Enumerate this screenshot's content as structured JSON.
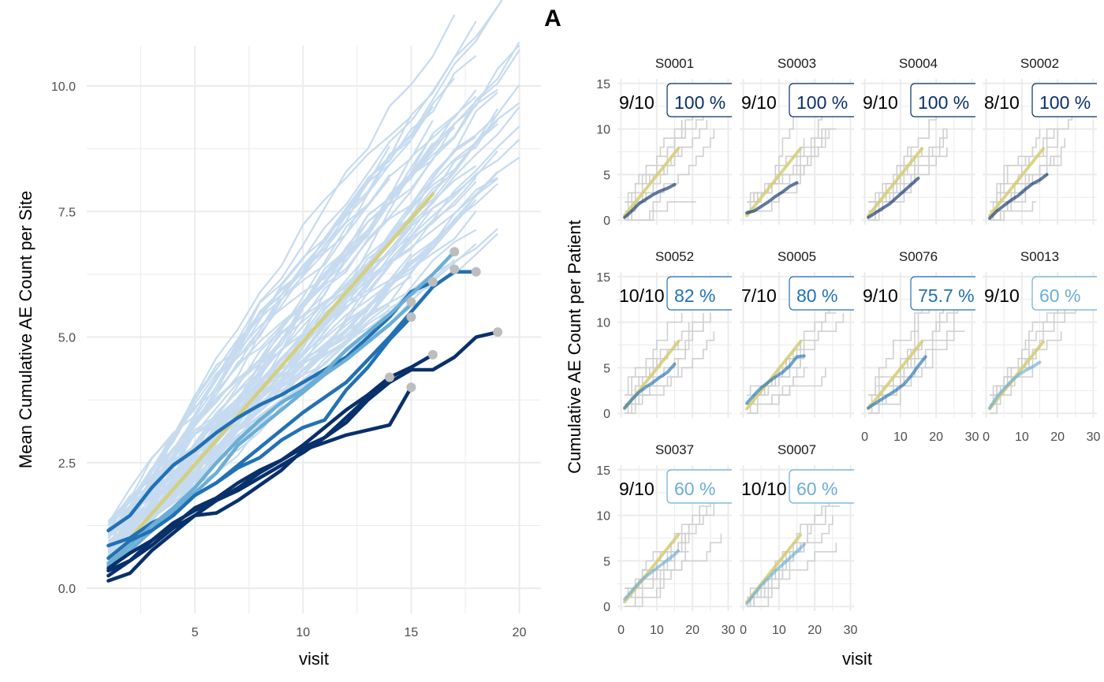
{
  "figure_title": "A",
  "colors": {
    "grid": "#ebebeb",
    "site_background_line": "#c6dbef",
    "expected_line": "#d5cd72",
    "dot": "#bdbdbd",
    "patient_line": "#d0d0d0",
    "flag_dark": "#08306b",
    "flag_mid": "#2171b5",
    "flag_light": "#6baed6"
  },
  "chart_data": [
    {
      "type": "line",
      "title": "",
      "xlabel": "visit",
      "ylabel": "Mean Cumulative AE Count per Site",
      "xlim": [
        0,
        21
      ],
      "ylim": [
        -0.5,
        10.8
      ],
      "x_ticks": [
        5,
        10,
        15,
        20
      ],
      "x_tick_labels": [
        "5",
        "10",
        "15",
        "20"
      ],
      "y_ticks": [
        0,
        2.5,
        5,
        7.5,
        10
      ],
      "y_tick_labels": [
        "0.0",
        "2.5",
        "5.0",
        "7.5",
        "10.0"
      ],
      "grid": true,
      "legend": "none",
      "background_sites": {
        "count": 70,
        "color": "#c6dbef",
        "visit_range": [
          1,
          20
        ],
        "y_at_visit1_range": [
          0.4,
          1.35
        ],
        "y_at_visit17_range": [
          6.6,
          10.5
        ]
      },
      "expected": {
        "color": "#d5cd72",
        "x": [
          1,
          16
        ],
        "y": [
          0.5,
          7.85
        ]
      },
      "series": [
        {
          "color": "#2171b5",
          "x": [
            1,
            2,
            3,
            4,
            5,
            6,
            7,
            8,
            9,
            10,
            11,
            12,
            13,
            14,
            15,
            16
          ],
          "y": [
            1.15,
            1.45,
            2.0,
            2.45,
            2.75,
            3.1,
            3.4,
            3.65,
            3.85,
            4.1,
            4.35,
            4.6,
            5.0,
            5.4,
            5.9,
            6.1
          ]
        },
        {
          "color": "#2171b5",
          "x": [
            1,
            2,
            3,
            4,
            5,
            6,
            7,
            8,
            9,
            10,
            11,
            12,
            13,
            14,
            15,
            16,
            17,
            18
          ],
          "y": [
            0.85,
            1.0,
            1.3,
            1.5,
            1.85,
            2.1,
            2.45,
            2.8,
            3.15,
            3.5,
            3.8,
            4.1,
            4.55,
            5.0,
            5.5,
            6.0,
            6.3,
            6.3
          ]
        },
        {
          "color": "#6baed6",
          "x": [
            1,
            2,
            3,
            4,
            5,
            6,
            7,
            8,
            9,
            10,
            11,
            12,
            13,
            14,
            15,
            16,
            17
          ],
          "y": [
            0.5,
            0.85,
            1.25,
            1.6,
            2.0,
            2.5,
            2.95,
            3.35,
            3.7,
            3.95,
            4.3,
            4.75,
            5.1,
            5.45,
            5.85,
            6.25,
            6.7
          ]
        },
        {
          "color": "#6baed6",
          "x": [
            1,
            2,
            3,
            4,
            5,
            6,
            7,
            8,
            9,
            10,
            11,
            12,
            13,
            14,
            15
          ],
          "y": [
            0.45,
            0.75,
            1.15,
            1.55,
            1.9,
            2.3,
            2.85,
            3.2,
            3.55,
            3.9,
            4.25,
            4.55,
            4.9,
            5.25,
            5.65
          ]
        },
        {
          "color": "#2171b5",
          "x": [
            1,
            2,
            3,
            4,
            5,
            6,
            7,
            8,
            9,
            10,
            11,
            12,
            13,
            14,
            15
          ],
          "y": [
            0.6,
            0.95,
            1.15,
            1.45,
            1.85,
            2.1,
            2.4,
            2.6,
            2.95,
            3.2,
            3.35,
            3.95,
            4.4,
            4.95,
            5.4
          ]
        },
        {
          "color": "#08306b",
          "x": [
            1,
            2,
            3,
            4,
            5,
            6,
            7,
            8,
            9,
            10,
            11,
            12,
            13,
            14,
            15,
            16,
            17,
            18,
            19
          ],
          "y": [
            0.35,
            0.55,
            0.85,
            1.2,
            1.45,
            1.75,
            2.0,
            2.3,
            2.55,
            2.8,
            3.0,
            3.3,
            3.75,
            4.1,
            4.35,
            4.35,
            4.6,
            5.0,
            5.1
          ]
        },
        {
          "color": "#08306b",
          "x": [
            1,
            2,
            3,
            4,
            5,
            6,
            7,
            8,
            9,
            10,
            11,
            12,
            13,
            14,
            15,
            16
          ],
          "y": [
            0.4,
            0.7,
            0.95,
            1.3,
            1.55,
            1.75,
            1.95,
            2.2,
            2.45,
            2.7,
            3.0,
            3.4,
            3.8,
            4.2,
            4.4,
            4.65
          ]
        },
        {
          "color": "#08306b",
          "x": [
            1,
            2,
            3,
            4,
            5,
            6,
            7,
            8,
            9,
            10,
            11,
            12,
            13,
            14
          ],
          "y": [
            0.25,
            0.55,
            0.95,
            1.25,
            1.6,
            1.8,
            2.1,
            2.35,
            2.55,
            2.85,
            3.2,
            3.55,
            3.85,
            4.2
          ]
        },
        {
          "color": "#08306b",
          "x": [
            1,
            2,
            3,
            4,
            5,
            6,
            7,
            8,
            9,
            10,
            11,
            12,
            13,
            14,
            15
          ],
          "y": [
            0.15,
            0.3,
            0.75,
            1.1,
            1.45,
            1.5,
            1.75,
            2.05,
            2.35,
            2.75,
            2.9,
            3.05,
            3.15,
            3.25,
            4.0
          ]
        }
      ],
      "end_dots": [
        [
          17,
          6.7
        ],
        [
          17,
          6.35
        ],
        [
          18,
          6.3
        ],
        [
          16,
          6.1
        ],
        [
          15,
          5.7
        ],
        [
          15,
          5.4
        ],
        [
          19,
          5.1
        ],
        [
          16,
          4.65
        ],
        [
          14,
          4.2
        ],
        [
          15,
          4.0
        ]
      ]
    },
    {
      "type": "line",
      "title": "",
      "xlabel": "visit",
      "ylabel": "Cumulative AE Count per Patient",
      "xlim": [
        -1,
        31
      ],
      "ylim": [
        -0.5,
        15.5
      ],
      "x_ticks": [
        0,
        10,
        20,
        30
      ],
      "x_tick_labels": [
        "0",
        "10",
        "20",
        "30"
      ],
      "y_ticks": [
        0,
        5,
        10,
        15
      ],
      "y_tick_labels": [
        "0",
        "5",
        "10",
        "15"
      ],
      "grid": true,
      "facet_rows": 3,
      "facet_cols": 4,
      "expected": {
        "color": "#d5cd72",
        "x": [
          1,
          16
        ],
        "y": [
          0.5,
          7.85
        ]
      },
      "panels": [
        {
          "site": "S0001",
          "ratio": "9/10",
          "pct": "100 %",
          "color": "#08306b",
          "line": [
            [
              1,
              0.3
            ],
            [
              3,
              1.0
            ],
            [
              5,
              1.8
            ],
            [
              7,
              2.3
            ],
            [
              9,
              2.8
            ],
            [
              11,
              3.2
            ],
            [
              13,
              3.5
            ],
            [
              15,
              3.9
            ]
          ]
        },
        {
          "site": "S0003",
          "ratio": "9/10",
          "pct": "100 %",
          "color": "#08306b",
          "line": [
            [
              1,
              0.8
            ],
            [
              3,
              1.0
            ],
            [
              5,
              1.5
            ],
            [
              7,
              2.0
            ],
            [
              9,
              2.6
            ],
            [
              11,
              3.1
            ],
            [
              13,
              3.7
            ],
            [
              15,
              4.1
            ]
          ]
        },
        {
          "site": "S0004",
          "ratio": "9/10",
          "pct": "100 %",
          "color": "#08306b",
          "line": [
            [
              1,
              0.3
            ],
            [
              3,
              0.8
            ],
            [
              5,
              1.3
            ],
            [
              7,
              1.8
            ],
            [
              9,
              2.5
            ],
            [
              11,
              3.2
            ],
            [
              13,
              3.9
            ],
            [
              15,
              4.6
            ]
          ]
        },
        {
          "site": "S0002",
          "ratio": "8/10",
          "pct": "100 %",
          "color": "#08306b",
          "line": [
            [
              1,
              0.2
            ],
            [
              3,
              1.0
            ],
            [
              5,
              1.6
            ],
            [
              7,
              2.2
            ],
            [
              9,
              2.7
            ],
            [
              11,
              3.4
            ],
            [
              13,
              4.0
            ],
            [
              15,
              4.4
            ],
            [
              17,
              5.0
            ]
          ]
        },
        {
          "site": "S0052",
          "ratio": "10/10",
          "pct": "82 %",
          "color": "#2171b5",
          "line": [
            [
              1,
              0.6
            ],
            [
              3,
              1.5
            ],
            [
              5,
              2.3
            ],
            [
              7,
              2.9
            ],
            [
              9,
              3.4
            ],
            [
              11,
              4.0
            ],
            [
              13,
              4.5
            ],
            [
              15,
              5.4
            ]
          ]
        },
        {
          "site": "S0005",
          "ratio": "7/10",
          "pct": "80 %",
          "color": "#2171b5",
          "line": [
            [
              1,
              1.1
            ],
            [
              3,
              2.0
            ],
            [
              5,
              2.8
            ],
            [
              7,
              3.4
            ],
            [
              9,
              4.0
            ],
            [
              11,
              4.5
            ],
            [
              13,
              5.2
            ],
            [
              15,
              6.2
            ],
            [
              17,
              6.3
            ]
          ]
        },
        {
          "site": "S0076",
          "ratio": "9/10",
          "pct": "75.7 %",
          "color": "#2171b5",
          "line": [
            [
              1,
              0.6
            ],
            [
              3,
              1.1
            ],
            [
              5,
              1.6
            ],
            [
              7,
              2.1
            ],
            [
              9,
              2.6
            ],
            [
              11,
              3.2
            ],
            [
              13,
              4.1
            ],
            [
              15,
              5.2
            ],
            [
              17,
              6.2
            ]
          ]
        },
        {
          "site": "S0013",
          "ratio": "9/10",
          "pct": "60 %",
          "color": "#6baed6",
          "line": [
            [
              1,
              0.6
            ],
            [
              3,
              1.8
            ],
            [
              5,
              2.7
            ],
            [
              7,
              3.5
            ],
            [
              9,
              4.2
            ],
            [
              11,
              4.7
            ],
            [
              13,
              5.1
            ],
            [
              15,
              5.6
            ]
          ]
        },
        {
          "site": "S0037",
          "ratio": "9/10",
          "pct": "60 %",
          "color": "#6baed6",
          "line": [
            [
              1,
              0.8
            ],
            [
              3,
              1.7
            ],
            [
              5,
              2.6
            ],
            [
              7,
              3.3
            ],
            [
              9,
              3.9
            ],
            [
              11,
              4.5
            ],
            [
              13,
              5.1
            ],
            [
              15,
              5.7
            ],
            [
              16,
              6.1
            ]
          ]
        },
        {
          "site": "S0007",
          "ratio": "10/10",
          "pct": "60 %",
          "color": "#6baed6",
          "line": [
            [
              1,
              0.3
            ],
            [
              3,
              1.3
            ],
            [
              5,
              2.3
            ],
            [
              7,
              3.1
            ],
            [
              9,
              3.9
            ],
            [
              11,
              4.6
            ],
            [
              13,
              5.3
            ],
            [
              15,
              6.0
            ],
            [
              17,
              6.8
            ]
          ]
        }
      ]
    }
  ]
}
